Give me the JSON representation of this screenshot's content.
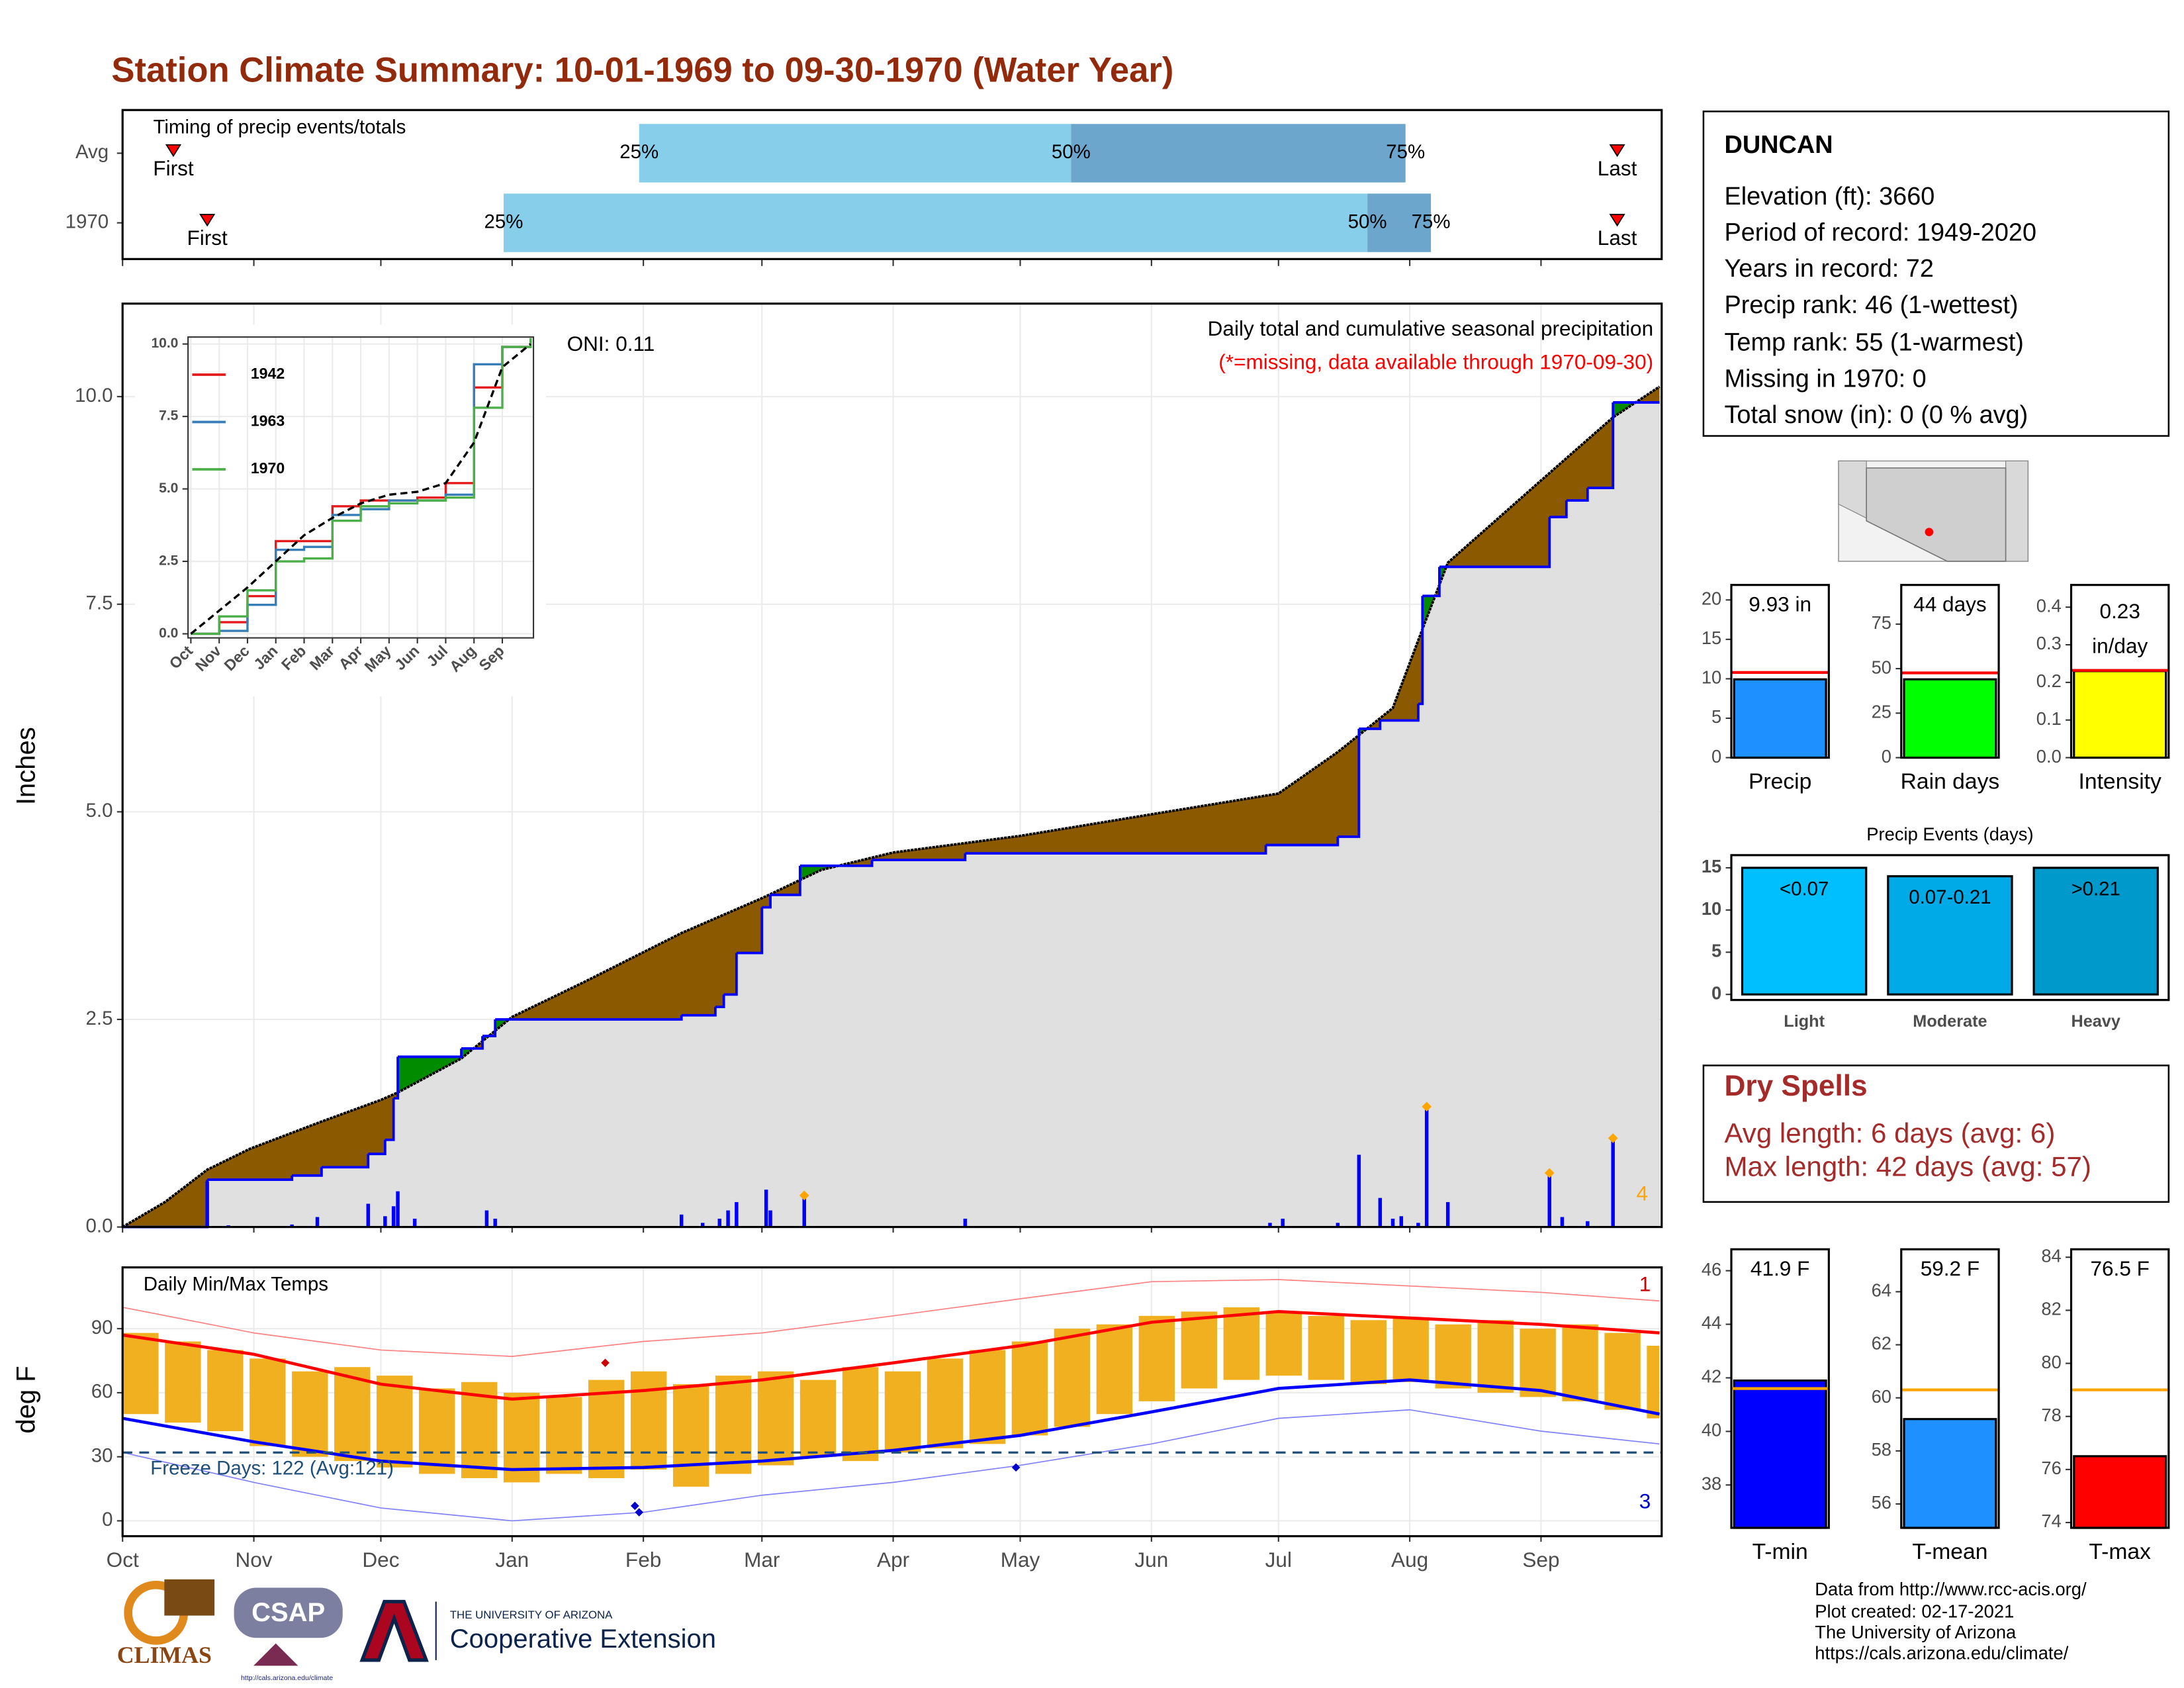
{
  "title": "Station Climate Summary: 10-01-1969 to 09-30-1970 (Water Year)",
  "station": {
    "name": "DUNCAN",
    "lines": [
      "Elevation (ft): 3660",
      "Period of record: 1949-2020",
      "Years in record: 72",
      "Precip rank: 46 (1-wettest)",
      "Temp rank: 55 (1-warmest)",
      "Missing in 1970: 0",
      "Total snow (in): 0 (0 % avg)"
    ]
  },
  "dry_spells": {
    "title": "Dry Spells",
    "lines": [
      "Avg length: 6 days (avg: 6)",
      "Max length: 42 days (avg: 57)"
    ]
  },
  "footer": {
    "credits": [
      "Data from http://www.rcc-acis.org/",
      "Plot created: 02-17-2021",
      "The University of Arizona",
      "https://cals.arizona.edu/climate/"
    ],
    "logos": [
      "CLIMAS",
      "CSAP",
      "http://cals.arizona.edu/climate",
      "THE UNIVERSITY OF ARIZONA",
      "Cooperative Extension"
    ]
  },
  "chart_data": [
    {
      "type": "timing",
      "title": "Timing of precip events/totals",
      "xlim": [
        0,
        363.5
      ],
      "categories": [
        "Avg",
        "1970"
      ],
      "first": [
        12,
        20
      ],
      "last": [
        353,
        353
      ],
      "q25": [
        122,
        90
      ],
      "q50": [
        224,
        294
      ],
      "q75": [
        303,
        309
      ],
      "first_label": "First",
      "last_label": "Last",
      "quantile_labels": [
        "25%",
        "50%",
        "75%"
      ],
      "colors": [
        "#87ceeb",
        "#6ca6cd"
      ],
      "marker_color": "#ff0000"
    },
    {
      "type": "precip",
      "annotations": [
        "Daily total and cumulative seasonal precipitation",
        "(*=missing, data available through 1970-09-30)"
      ],
      "oni": "ONI: 0.11",
      "ylabel": "Inches",
      "xlim": [
        0,
        363.5
      ],
      "ylim": [
        0,
        11.12
      ],
      "xticks": [
        0,
        31,
        61,
        92,
        123,
        151,
        182,
        212,
        243,
        273,
        304,
        335
      ],
      "yticks": [
        {
          "value": 0,
          "label": "0.0"
        },
        2.5,
        {
          "value": 5,
          "label": "5.0"
        },
        7.5,
        {
          "value": 10,
          "label": "10.0"
        }
      ],
      "grid": true,
      "series": [
        {
          "color": "#000000",
          "x": [
            0,
            10,
            20,
            30,
            47,
            61,
            65,
            80,
            92,
            109,
            132,
            151,
            165,
            182,
            212,
            243,
            273,
            287,
            300,
            307,
            313,
            335,
            352,
            363
          ],
          "values": [
            0,
            0.3,
            0.69,
            0.94,
            1.27,
            1.53,
            1.62,
            2.03,
            2.53,
            2.95,
            3.54,
            3.96,
            4.3,
            4.51,
            4.71,
            4.97,
            5.22,
            5.72,
            6.25,
            7.2,
            8.0,
            8.99,
            9.75,
            10.12
          ]
        },
        {
          "color": "#0000ff",
          "x": [
            0,
            20,
            40,
            47,
            58,
            62,
            64,
            65,
            80,
            85,
            88,
            132,
            140,
            142,
            145,
            151,
            153,
            160,
            177,
            199,
            270,
            287,
            292,
            297,
            306,
            307,
            311,
            337,
            341,
            346,
            352,
            363
          ],
          "values": [
            0,
            0.57,
            0.62,
            0.72,
            0.88,
            1.05,
            1.55,
            2.05,
            2.15,
            2.3,
            2.5,
            2.55,
            2.65,
            2.8,
            3.3,
            3.85,
            4.0,
            4.35,
            4.42,
            4.5,
            4.6,
            4.7,
            6.0,
            6.1,
            6.3,
            7.6,
            7.95,
            8.55,
            8.75,
            8.9,
            9.93,
            9.93
          ]
        }
      ],
      "daily": {
        "color": "#0000ff",
        "x": [
          20,
          25,
          40,
          46,
          58,
          62,
          64,
          65,
          69,
          86,
          88,
          132,
          137,
          141,
          143,
          145,
          152,
          153,
          161,
          199,
          271,
          274,
          287,
          292,
          297,
          300,
          302,
          306,
          308,
          313,
          337,
          340,
          346,
          352
        ],
        "values": [
          0.55,
          0.02,
          0.03,
          0.12,
          0.28,
          0.13,
          0.25,
          0.43,
          0.1,
          0.2,
          0.1,
          0.15,
          0.05,
          0.1,
          0.2,
          0.3,
          0.45,
          0.2,
          0.38,
          0.1,
          0.05,
          0.1,
          0.05,
          0.87,
          0.35,
          0.1,
          0.13,
          0.05,
          1.45,
          0.3,
          0.65,
          0.12,
          0.07,
          1.07
        ]
      },
      "top_events": {
        "color": "#ffa500",
        "x": [
          161,
          308,
          337,
          352
        ],
        "values": [
          0.38,
          1.45,
          0.65,
          1.07
        ],
        "label": 4
      },
      "fill_colors": {
        "above": "#008b00",
        "below": "#8b5a00",
        "base": "#e0e0e0"
      }
    },
    {
      "type": "line",
      "x": [
        0,
        1,
        2,
        3,
        4,
        5,
        6,
        7,
        8,
        9,
        10,
        11,
        12
      ],
      "xlim": [
        -0.1,
        12.1
      ],
      "ylim": [
        -0.14,
        10.24
      ],
      "xticks": [
        {
          "value": 0,
          "label": "Oct"
        },
        {
          "value": 1,
          "label": "Nov"
        },
        {
          "value": 2,
          "label": "Dec"
        },
        {
          "value": 3,
          "label": "Jan"
        },
        {
          "value": 4,
          "label": "Feb"
        },
        {
          "value": 5,
          "label": "Mar"
        },
        {
          "value": 6,
          "label": "Apr"
        },
        {
          "value": 7,
          "label": "May"
        },
        {
          "value": 8,
          "label": "Jun"
        },
        {
          "value": 9,
          "label": "Jul"
        },
        {
          "value": 10,
          "label": "Aug"
        },
        {
          "value": 11,
          "label": "Sep"
        }
      ],
      "yticks": [
        {
          "value": 0,
          "label": "0.0"
        },
        2.5,
        {
          "value": 5,
          "label": "5.0"
        },
        7.5,
        {
          "value": 10,
          "label": "10.0"
        }
      ],
      "grid": true,
      "series": [
        {
          "name": "1942",
          "color": "#e41a1c",
          "values": [
            0,
            0.4,
            1.3,
            3.2,
            3.2,
            4.4,
            4.6,
            4.6,
            4.7,
            5.2,
            8.5,
            9.9,
            10.2
          ]
        },
        {
          "name": "1963",
          "color": "#377eb8",
          "values": [
            0,
            0.1,
            1.0,
            2.9,
            3.0,
            4.1,
            4.3,
            4.6,
            4.6,
            4.8,
            9.3,
            9.9,
            10.2
          ]
        },
        {
          "name": "1970",
          "color": "#4daf4a",
          "values": [
            0,
            0.6,
            1.5,
            2.5,
            2.6,
            3.9,
            4.4,
            4.5,
            4.6,
            4.7,
            7.8,
            9.9,
            10.2
          ]
        }
      ],
      "average": {
        "color": "#000000",
        "values": [
          0,
          0.8,
          1.6,
          2.5,
          3.4,
          4.0,
          4.5,
          4.8,
          4.9,
          5.2,
          6.6,
          9.2,
          10.0
        ]
      }
    },
    {
      "type": "bar",
      "xlabel": "Precip",
      "values": [
        9.93
      ],
      "value_labels": [
        "9.93 in"
      ],
      "avg": 10.8,
      "color": "#1e90ff",
      "avg_color": "#ff0000",
      "ylim": [
        0,
        21.9
      ],
      "yticks": [
        0,
        5,
        10,
        15,
        20
      ]
    },
    {
      "type": "bar",
      "xlabel": "Rain days",
      "values": [
        44
      ],
      "value_labels": [
        "44 days"
      ],
      "avg": 47.6,
      "color": "#00ff00",
      "avg_color": "#ff0000",
      "ylim": [
        0,
        97
      ],
      "yticks": [
        0,
        25,
        50,
        75
      ]
    },
    {
      "type": "bar",
      "xlabel": "Intensity",
      "values": [
        0.23
      ],
      "value_labels": [
        "0.23"
      ],
      "value_unit": "in/day",
      "avg": 0.232,
      "color": "#ffff00",
      "avg_color": "#ff0000",
      "ylim": [
        0,
        0.459
      ],
      "yticks": [
        {
          "value": 0,
          "label": "0.0"
        },
        0.1,
        0.2,
        0.3,
        0.4
      ]
    },
    {
      "type": "bar",
      "title": "Precip Events (days)",
      "categories": [
        "Light",
        "Moderate",
        "Heavy"
      ],
      "values": [
        15,
        14,
        15
      ],
      "bar_labels": [
        "<0.07",
        "0.07-0.21",
        ">0.21"
      ],
      "colors": [
        "#00bfff",
        "#00aae6",
        "#0099cc"
      ],
      "ylim": [
        -0.66,
        16.5
      ],
      "yticks": [
        0,
        5,
        10,
        15
      ]
    },
    {
      "type": "temp",
      "title": "Daily Min/Max Temps",
      "ylabel": "deg F",
      "annotation": "Freeze Days: 122 (Avg:121)",
      "freeze": 32,
      "freeze_color": "#1f4e79",
      "xlim": [
        0,
        363.5
      ],
      "ylim": [
        -7.2,
        118.7
      ],
      "yticks": [
        0,
        30,
        60,
        90
      ],
      "grid": true,
      "xticks": [
        {
          "value": 0,
          "label": "Oct"
        },
        {
          "value": 31,
          "label": "Nov"
        },
        {
          "value": 61,
          "label": "Dec"
        },
        {
          "value": 92,
          "label": "Jan"
        },
        {
          "value": 123,
          "label": "Feb"
        },
        {
          "value": 151,
          "label": "Mar"
        },
        {
          "value": 182,
          "label": "Apr"
        },
        {
          "value": 212,
          "label": "May"
        },
        {
          "value": 243,
          "label": "Jun"
        },
        {
          "value": 273,
          "label": "Jul"
        },
        {
          "value": 304,
          "label": "Aug"
        },
        {
          "value": 335,
          "label": "Sep"
        }
      ],
      "range": {
        "color": "#f0b020",
        "x": [
          0,
          10,
          20,
          30,
          40,
          50,
          60,
          70,
          80,
          90,
          100,
          110,
          120,
          130,
          140,
          150,
          160,
          170,
          180,
          190,
          200,
          210,
          220,
          230,
          240,
          250,
          260,
          270,
          280,
          290,
          300,
          310,
          320,
          330,
          340,
          350,
          360
        ],
        "low": [
          50,
          46,
          42,
          35,
          30,
          28,
          25,
          22,
          20,
          18,
          22,
          20,
          24,
          16,
          22,
          26,
          30,
          28,
          32,
          34,
          36,
          40,
          44,
          50,
          56,
          62,
          66,
          68,
          66,
          64,
          65,
          62,
          60,
          58,
          56,
          52,
          48
        ],
        "high": [
          88,
          84,
          80,
          76,
          70,
          72,
          68,
          62,
          65,
          60,
          58,
          66,
          70,
          64,
          68,
          70,
          66,
          72,
          70,
          76,
          80,
          84,
          90,
          92,
          96,
          98,
          100,
          98,
          96,
          94,
          95,
          92,
          94,
          90,
          92,
          88,
          82
        ]
      },
      "series": [
        {
          "color": "#ff8080",
          "width": 0.8,
          "x": [
            0,
            31,
            61,
            92,
            123,
            151,
            182,
            212,
            243,
            273,
            304,
            335,
            363
          ],
          "values": [
            100,
            88,
            80,
            77,
            84,
            88,
            96,
            104,
            112,
            113,
            110,
            107,
            103
          ]
        },
        {
          "color": "#8080ff",
          "width": 0.8,
          "x": [
            0,
            31,
            61,
            92,
            123,
            151,
            182,
            212,
            243,
            273,
            304,
            335,
            363
          ],
          "values": [
            32,
            18,
            6,
            0,
            4,
            12,
            18,
            26,
            36,
            48,
            52,
            42,
            36
          ]
        },
        {
          "color": "#ff0000",
          "width": 2.2,
          "x": [
            0,
            31,
            61,
            92,
            123,
            151,
            182,
            212,
            243,
            273,
            304,
            335,
            363
          ],
          "values": [
            87,
            78,
            64,
            57,
            61,
            66,
            74,
            82,
            93,
            98,
            95,
            92,
            88
          ]
        },
        {
          "color": "#0000ff",
          "width": 2.2,
          "x": [
            0,
            31,
            61,
            92,
            123,
            151,
            182,
            212,
            243,
            273,
            304,
            335,
            363
          ],
          "values": [
            48,
            37,
            28,
            24,
            25,
            28,
            33,
            40,
            51,
            62,
            66,
            61,
            50
          ]
        }
      ],
      "record_highs": {
        "color": "#cc0000",
        "x": [
          114
        ],
        "values": [
          74
        ],
        "label": 1
      },
      "record_lows": {
        "color": "#0000cc",
        "x": [
          121,
          122,
          211
        ],
        "values": [
          7,
          4,
          25
        ],
        "label": 3
      }
    },
    {
      "type": "bar",
      "xlabel": "T-min",
      "values": [
        41.9
      ],
      "value_labels": [
        "41.9 F"
      ],
      "avg": 41.6,
      "color": "#0000ff",
      "avg_color": "#ffa500",
      "ylim": [
        36.4,
        46.8
      ],
      "yticks": [
        38,
        40,
        42,
        44,
        46
      ]
    },
    {
      "type": "bar",
      "xlabel": "T-mean",
      "values": [
        59.2
      ],
      "value_labels": [
        "59.2 F"
      ],
      "avg": 60.3,
      "color": "#1e90ff",
      "avg_color": "#ffa500",
      "ylim": [
        55.1,
        65.6
      ],
      "yticks": [
        56,
        58,
        60,
        62,
        64
      ]
    },
    {
      "type": "bar",
      "xlabel": "T-max",
      "values": [
        76.5
      ],
      "value_labels": [
        "76.5 F"
      ],
      "avg": 79.0,
      "color": "#ff0000",
      "avg_color": "#ffa500",
      "ylim": [
        73.8,
        84.3
      ],
      "yticks": [
        74,
        76,
        78,
        80,
        82,
        84
      ]
    }
  ]
}
